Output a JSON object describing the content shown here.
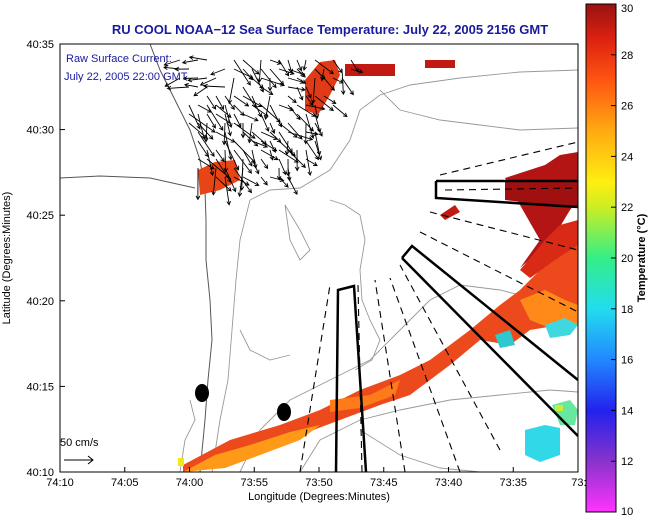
{
  "title": "RU COOL  NOAA−12  Sea Surface Temperature:  July 22, 2005 2156 GMT",
  "overlay": {
    "line1": "Raw Surface Current:",
    "line2": "July 22, 2005 22:00 GMT"
  },
  "scale_label": "50 cm/s",
  "x_axis": {
    "label": "Longitude (Degrees:Minutes)",
    "ticks": [
      "74:10",
      "74:05",
      "74:00",
      "73:55",
      "73:50",
      "73:45",
      "73:40",
      "73:35",
      "73:3"
    ]
  },
  "y_axis": {
    "label": "Latitude (Degrees:Minutes)",
    "ticks": [
      "40:35",
      "40:30",
      "40:25",
      "40:20",
      "40:15",
      "40:10"
    ]
  },
  "colorbar": {
    "label": "Temperature (°C)",
    "ticks": [
      "30",
      "28",
      "26",
      "24",
      "22",
      "20",
      "18",
      "16",
      "14",
      "12",
      "10"
    ]
  },
  "colors": {
    "title": "#1a1aa0",
    "overlay_text": "#1a1aa0",
    "warm_sst": "#e8401a",
    "hot_sst": "#b01414",
    "cool_sst": "#30d8e8"
  }
}
